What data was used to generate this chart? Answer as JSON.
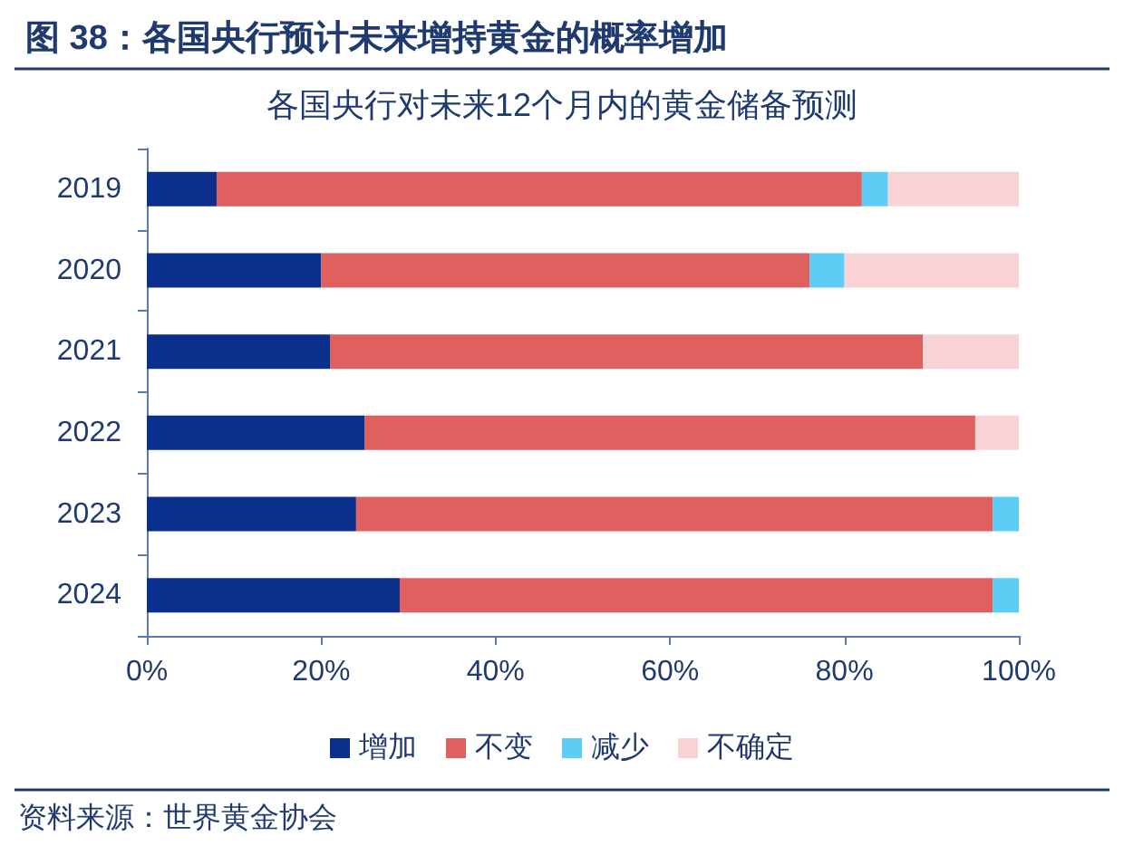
{
  "chart_data": {
    "type": "bar",
    "orientation": "horizontal",
    "stacked": true,
    "title": "图 38：各国央行预计未来增持黄金的概率增加",
    "subtitle": "各国央行对未来12个月内的黄金储备预测",
    "annotations": [
      "资料来源：世界黄金协会"
    ],
    "categories": [
      "2019",
      "2020",
      "2021",
      "2022",
      "2023",
      "2024"
    ],
    "series": [
      {
        "name": "增加",
        "color": "#0b2f8c",
        "values": [
          8,
          20,
          21,
          25,
          24,
          29
        ]
      },
      {
        "name": "不变",
        "color": "#e05f5f",
        "values": [
          74,
          56,
          68,
          70,
          73,
          68
        ]
      },
      {
        "name": "减少",
        "color": "#5ccdf5",
        "values": [
          3,
          4,
          0,
          0,
          3,
          3
        ]
      },
      {
        "name": "不确定",
        "color": "#f8d2d5",
        "values": [
          15,
          20,
          11,
          5,
          0,
          0
        ]
      }
    ],
    "xlim": [
      0,
      100
    ],
    "xticks": [
      {
        "value": 0,
        "label": "0%"
      },
      {
        "value": 20,
        "label": "20%"
      },
      {
        "value": 40,
        "label": "40%"
      },
      {
        "value": 60,
        "label": "60%"
      },
      {
        "value": 80,
        "label": "80%"
      },
      {
        "value": 100,
        "label": "100%"
      }
    ],
    "grid": false,
    "legend": "bottom"
  }
}
